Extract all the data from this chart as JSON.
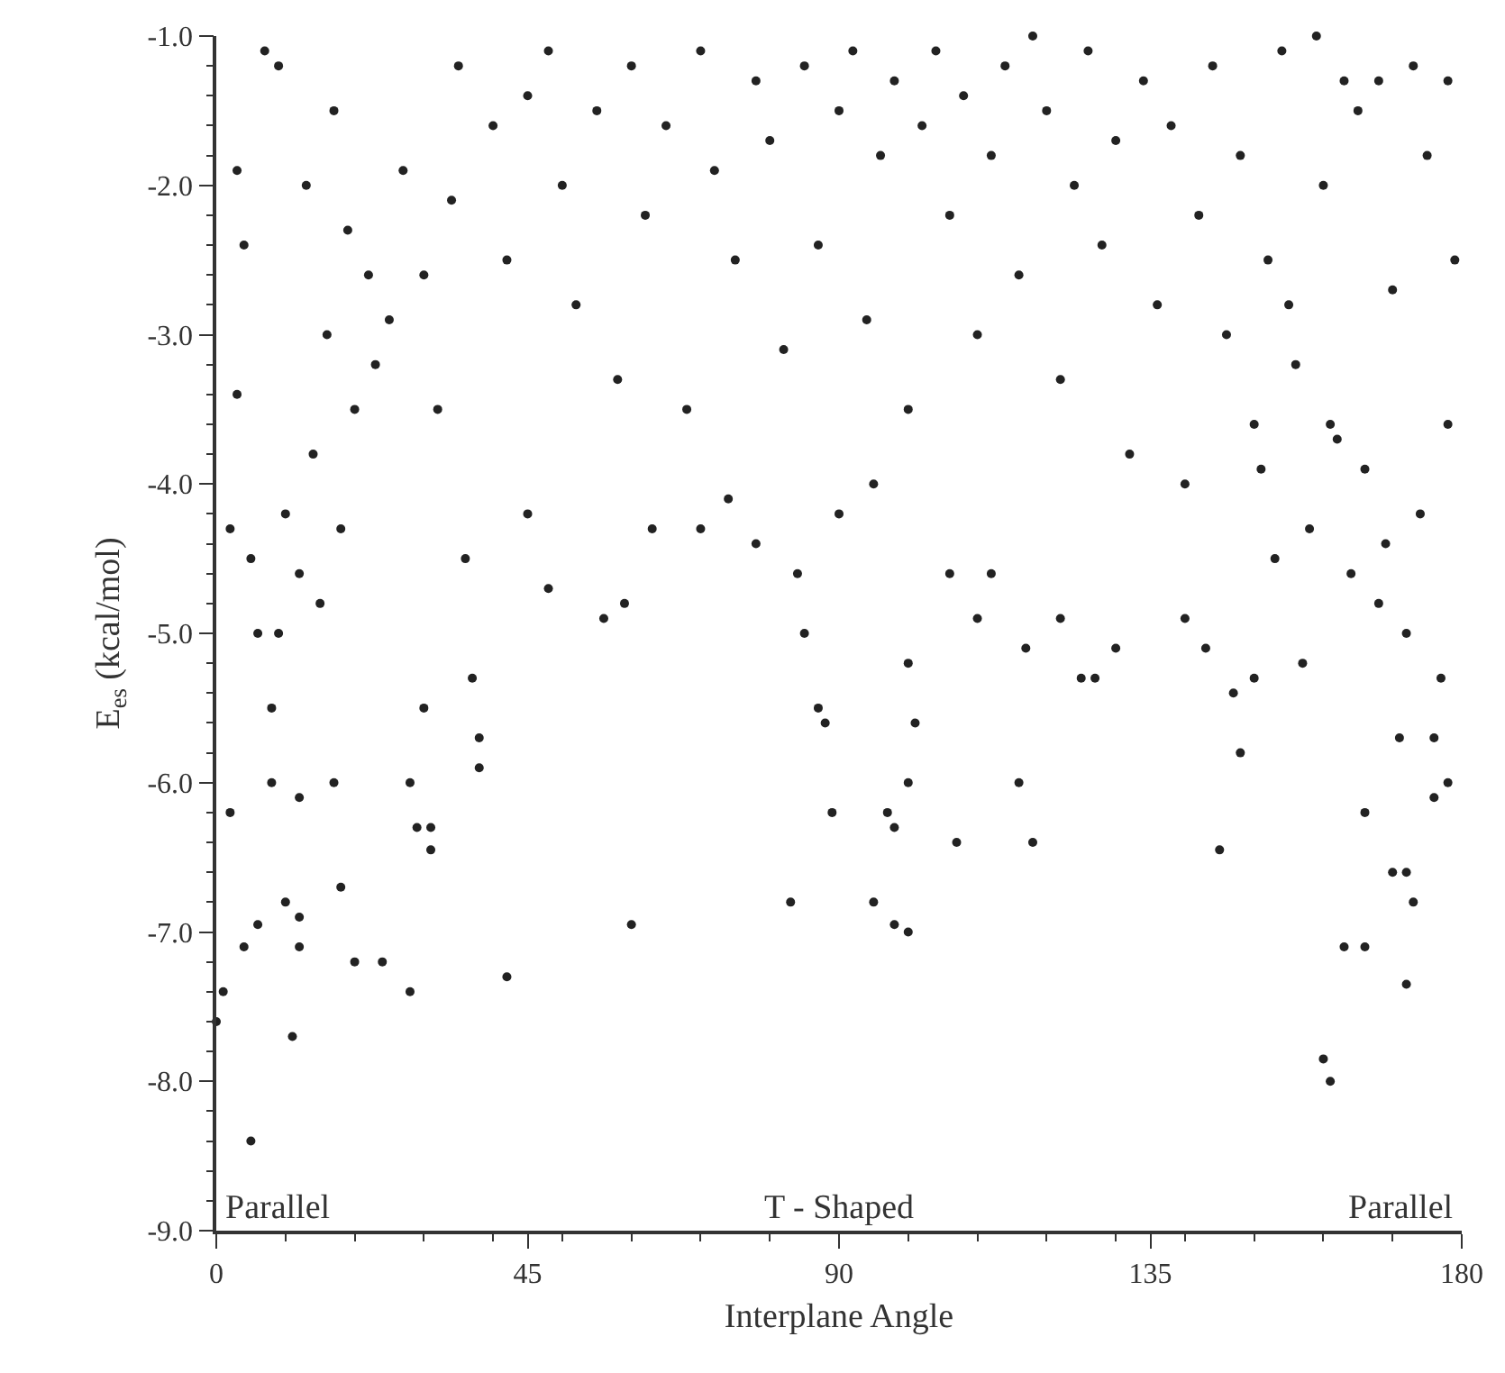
{
  "chart_data": {
    "type": "scatter",
    "xlabel": "Interplane Angle",
    "ylabel": "E$_{es}$ (kcal/mol)",
    "annotations": [
      "Parallel",
      "T - Shaped",
      "Parallel"
    ],
    "xlim": [
      0,
      180
    ],
    "xticks": [
      0,
      45,
      90,
      135,
      180
    ],
    "ylim": [
      -9,
      -1
    ],
    "yticks": [
      {
        "value": -9,
        "label": "-9.0"
      },
      {
        "value": -8,
        "label": "-8.0"
      },
      {
        "value": -7,
        "label": "-7.0"
      },
      {
        "value": -6,
        "label": "-6.0"
      },
      {
        "value": -5,
        "label": "-5.0"
      },
      {
        "value": -4,
        "label": "-4.0"
      },
      {
        "value": -3,
        "label": "-3.0"
      },
      {
        "value": -2,
        "label": "-2.0"
      },
      {
        "value": -1,
        "label": "-1.0"
      }
    ],
    "marker": "circle",
    "series": [
      {
        "color": "#222222",
        "x": [
          1,
          0,
          5,
          2,
          4,
          6,
          10,
          12,
          11,
          18,
          20,
          24,
          28,
          12,
          12,
          8,
          17,
          28,
          29,
          31,
          31,
          42,
          60,
          83,
          95,
          98,
          100,
          89,
          97,
          98,
          100,
          107,
          116,
          118,
          145,
          160,
          161,
          163,
          166,
          172,
          173,
          172,
          170,
          176,
          178,
          166,
          37,
          38,
          38,
          30,
          48,
          36,
          45,
          56,
          59,
          63,
          70,
          74,
          78,
          84,
          85,
          87,
          88,
          90,
          95,
          100,
          101,
          106,
          110,
          112,
          117,
          122,
          125,
          127,
          130,
          140,
          143,
          147,
          148,
          150,
          2,
          3,
          5,
          6,
          8,
          9,
          10,
          12,
          14,
          15,
          16,
          18,
          20,
          22,
          4,
          7,
          9,
          3,
          13,
          17,
          19,
          23,
          25,
          27,
          30,
          32,
          34,
          35,
          40,
          42,
          45,
          48,
          50,
          52,
          55,
          58,
          60,
          62,
          65,
          68,
          70,
          72,
          75,
          78,
          80,
          82,
          85,
          87,
          90,
          92,
          94,
          96,
          98,
          100,
          102,
          104,
          106,
          108,
          110,
          112,
          114,
          116,
          118,
          120,
          122,
          124,
          126,
          128,
          130,
          132,
          134,
          136,
          138,
          140,
          142,
          144,
          146,
          148,
          150,
          152,
          154,
          156,
          158,
          160,
          162,
          164,
          165,
          166,
          168,
          170,
          172,
          174,
          175,
          177,
          178,
          179,
          178,
          173,
          168,
          163,
          171,
          176,
          169,
          161,
          157,
          153,
          151,
          155,
          159
        ],
        "values": [
          -7.4,
          -7.6,
          -8.4,
          -6.2,
          -7.1,
          -6.95,
          -6.8,
          -7.1,
          -7.7,
          -6.7,
          -7.2,
          -7.2,
          -7.4,
          -6.9,
          -6.1,
          -6.0,
          -6.0,
          -6.0,
          -6.3,
          -6.45,
          -6.3,
          -7.3,
          -6.95,
          -6.8,
          -6.8,
          -6.95,
          -7.0,
          -6.2,
          -6.2,
          -6.3,
          -6.0,
          -6.4,
          -6.0,
          -6.4,
          -6.45,
          -7.85,
          -8.0,
          -7.1,
          -7.1,
          -7.35,
          -6.8,
          -6.6,
          -6.6,
          -6.1,
          -6.0,
          -6.2,
          -5.3,
          -5.7,
          -5.9,
          -5.5,
          -4.7,
          -4.5,
          -4.2,
          -4.9,
          -4.8,
          -4.3,
          -4.3,
          -4.1,
          -4.4,
          -4.6,
          -5.0,
          -5.5,
          -5.6,
          -4.2,
          -4.0,
          -5.2,
          -5.6,
          -4.6,
          -4.9,
          -4.6,
          -5.1,
          -4.9,
          -5.3,
          -5.3,
          -5.1,
          -4.9,
          -5.1,
          -5.4,
          -5.8,
          -5.3,
          -4.3,
          -3.4,
          -4.5,
          -5.0,
          -5.5,
          -5.0,
          -4.2,
          -4.6,
          -3.8,
          -4.8,
          -3.0,
          -4.3,
          -3.5,
          -2.6,
          -2.4,
          -1.1,
          -1.2,
          -1.9,
          -2.0,
          -1.5,
          -2.3,
          -3.2,
          -2.9,
          -1.9,
          -2.6,
          -3.5,
          -2.1,
          -1.2,
          -1.6,
          -2.5,
          -1.4,
          -1.1,
          -2.0,
          -2.8,
          -1.5,
          -3.3,
          -1.2,
          -2.2,
          -1.6,
          -3.5,
          -1.1,
          -1.9,
          -2.5,
          -1.3,
          -1.7,
          -3.1,
          -1.2,
          -2.4,
          -1.5,
          -1.1,
          -2.9,
          -1.8,
          -1.3,
          -3.5,
          -1.6,
          -1.1,
          -2.2,
          -1.4,
          -3.0,
          -1.8,
          -1.2,
          -2.6,
          -1.0,
          -1.5,
          -3.3,
          -2.0,
          -1.1,
          -2.4,
          -1.7,
          -3.8,
          -1.3,
          -2.8,
          -1.6,
          -4.0,
          -2.2,
          -1.2,
          -3.0,
          -1.8,
          -3.6,
          -2.5,
          -1.1,
          -3.2,
          -4.3,
          -2.0,
          -3.7,
          -4.6,
          -1.5,
          -3.9,
          -4.8,
          -2.7,
          -5.0,
          -4.2,
          -1.8,
          -5.3,
          -3.6,
          -2.5,
          -1.3,
          -1.2,
          -1.3,
          -1.3,
          -5.7,
          -5.7,
          -4.4,
          -3.6,
          -5.2,
          -4.5,
          -3.9,
          -2.8,
          -1.0
        ]
      }
    ]
  }
}
